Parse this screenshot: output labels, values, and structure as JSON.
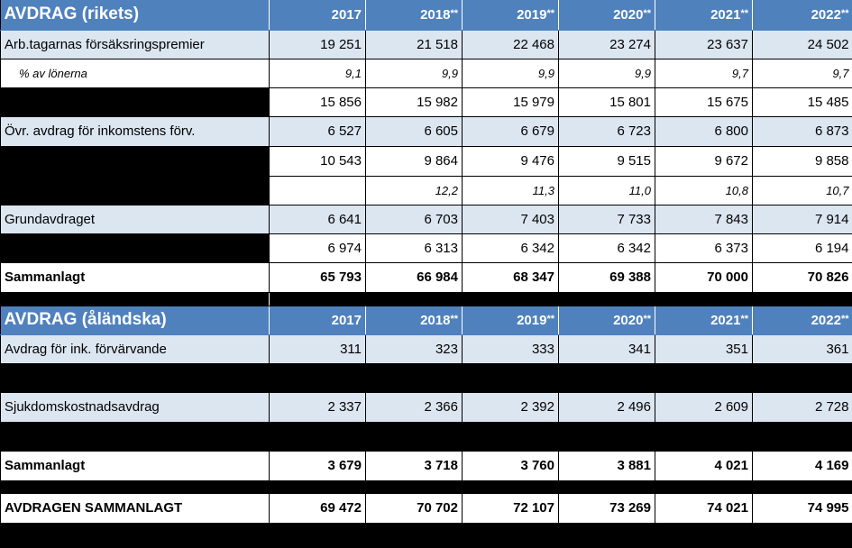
{
  "section1": {
    "title": "AVDRAG (rikets)",
    "years": [
      "2017",
      "2018",
      "2019",
      "2020",
      "2021",
      "2022"
    ],
    "marks": [
      "",
      "**",
      "**",
      "**",
      "**",
      "**"
    ],
    "rows": [
      {
        "label": "Arb.tagarnas försäksringspremier",
        "values": [
          "19 251",
          "21 518",
          "22 468",
          "23 274",
          "23 637",
          "24 502"
        ]
      },
      {
        "label": "% av lönerna",
        "values": [
          "9,1",
          "9,9",
          "9,9",
          "9,9",
          "9,7",
          "9,7"
        ]
      },
      {
        "label": "",
        "values": [
          "15 856",
          "15 982",
          "15 979",
          "15 801",
          "15 675",
          "15 485"
        ]
      },
      {
        "label": "Övr. avdrag för inkomstens förv.",
        "values": [
          "6 527",
          "6 605",
          "6 679",
          "6 723",
          "6 800",
          "6 873"
        ]
      },
      {
        "label": "",
        "values": [
          "10 543",
          "9 864",
          "9 476",
          "9 515",
          "9 672",
          "9 858"
        ]
      },
      {
        "label": "",
        "values": [
          "",
          "12,2",
          "11,3",
          "11,0",
          "10,8",
          "10,7"
        ]
      },
      {
        "label": "Grundavdraget",
        "values": [
          "6 641",
          "6 703",
          "7 403",
          "7 733",
          "7 843",
          "7 914"
        ]
      },
      {
        "label": "",
        "values": [
          "6 974",
          "6 313",
          "6 342",
          "6 342",
          "6 373",
          "6 194"
        ]
      }
    ],
    "total": {
      "label": "Sammanlagt",
      "values": [
        "65 793",
        "66 984",
        "68 347",
        "69 388",
        "70 000",
        "70 826"
      ]
    }
  },
  "section2": {
    "title": "AVDRAG (åländska)",
    "years": [
      "2017",
      "2018",
      "2019",
      "2020",
      "2021",
      "2022"
    ],
    "marks": [
      "",
      "**",
      "**",
      "**",
      "**",
      "**"
    ],
    "rows": [
      {
        "label": "Avdrag för ink. förvärvande",
        "values": [
          "311",
          "323",
          "333",
          "341",
          "351",
          "361"
        ]
      },
      {
        "label": "Sjukdomskostnadsavdrag",
        "values": [
          "2 337",
          "2 366",
          "2 392",
          "2 496",
          "2 609",
          "2 728"
        ]
      }
    ],
    "total": {
      "label": "Sammanlagt",
      "values": [
        "3 679",
        "3 718",
        "3 760",
        "3 881",
        "4 021",
        "4 169"
      ]
    }
  },
  "grand_total": {
    "label": "AVDRAGEN SAMMANLAGT",
    "values": [
      "69 472",
      "70 702",
      "72 107",
      "73 269",
      "74 021",
      "74 995"
    ]
  }
}
